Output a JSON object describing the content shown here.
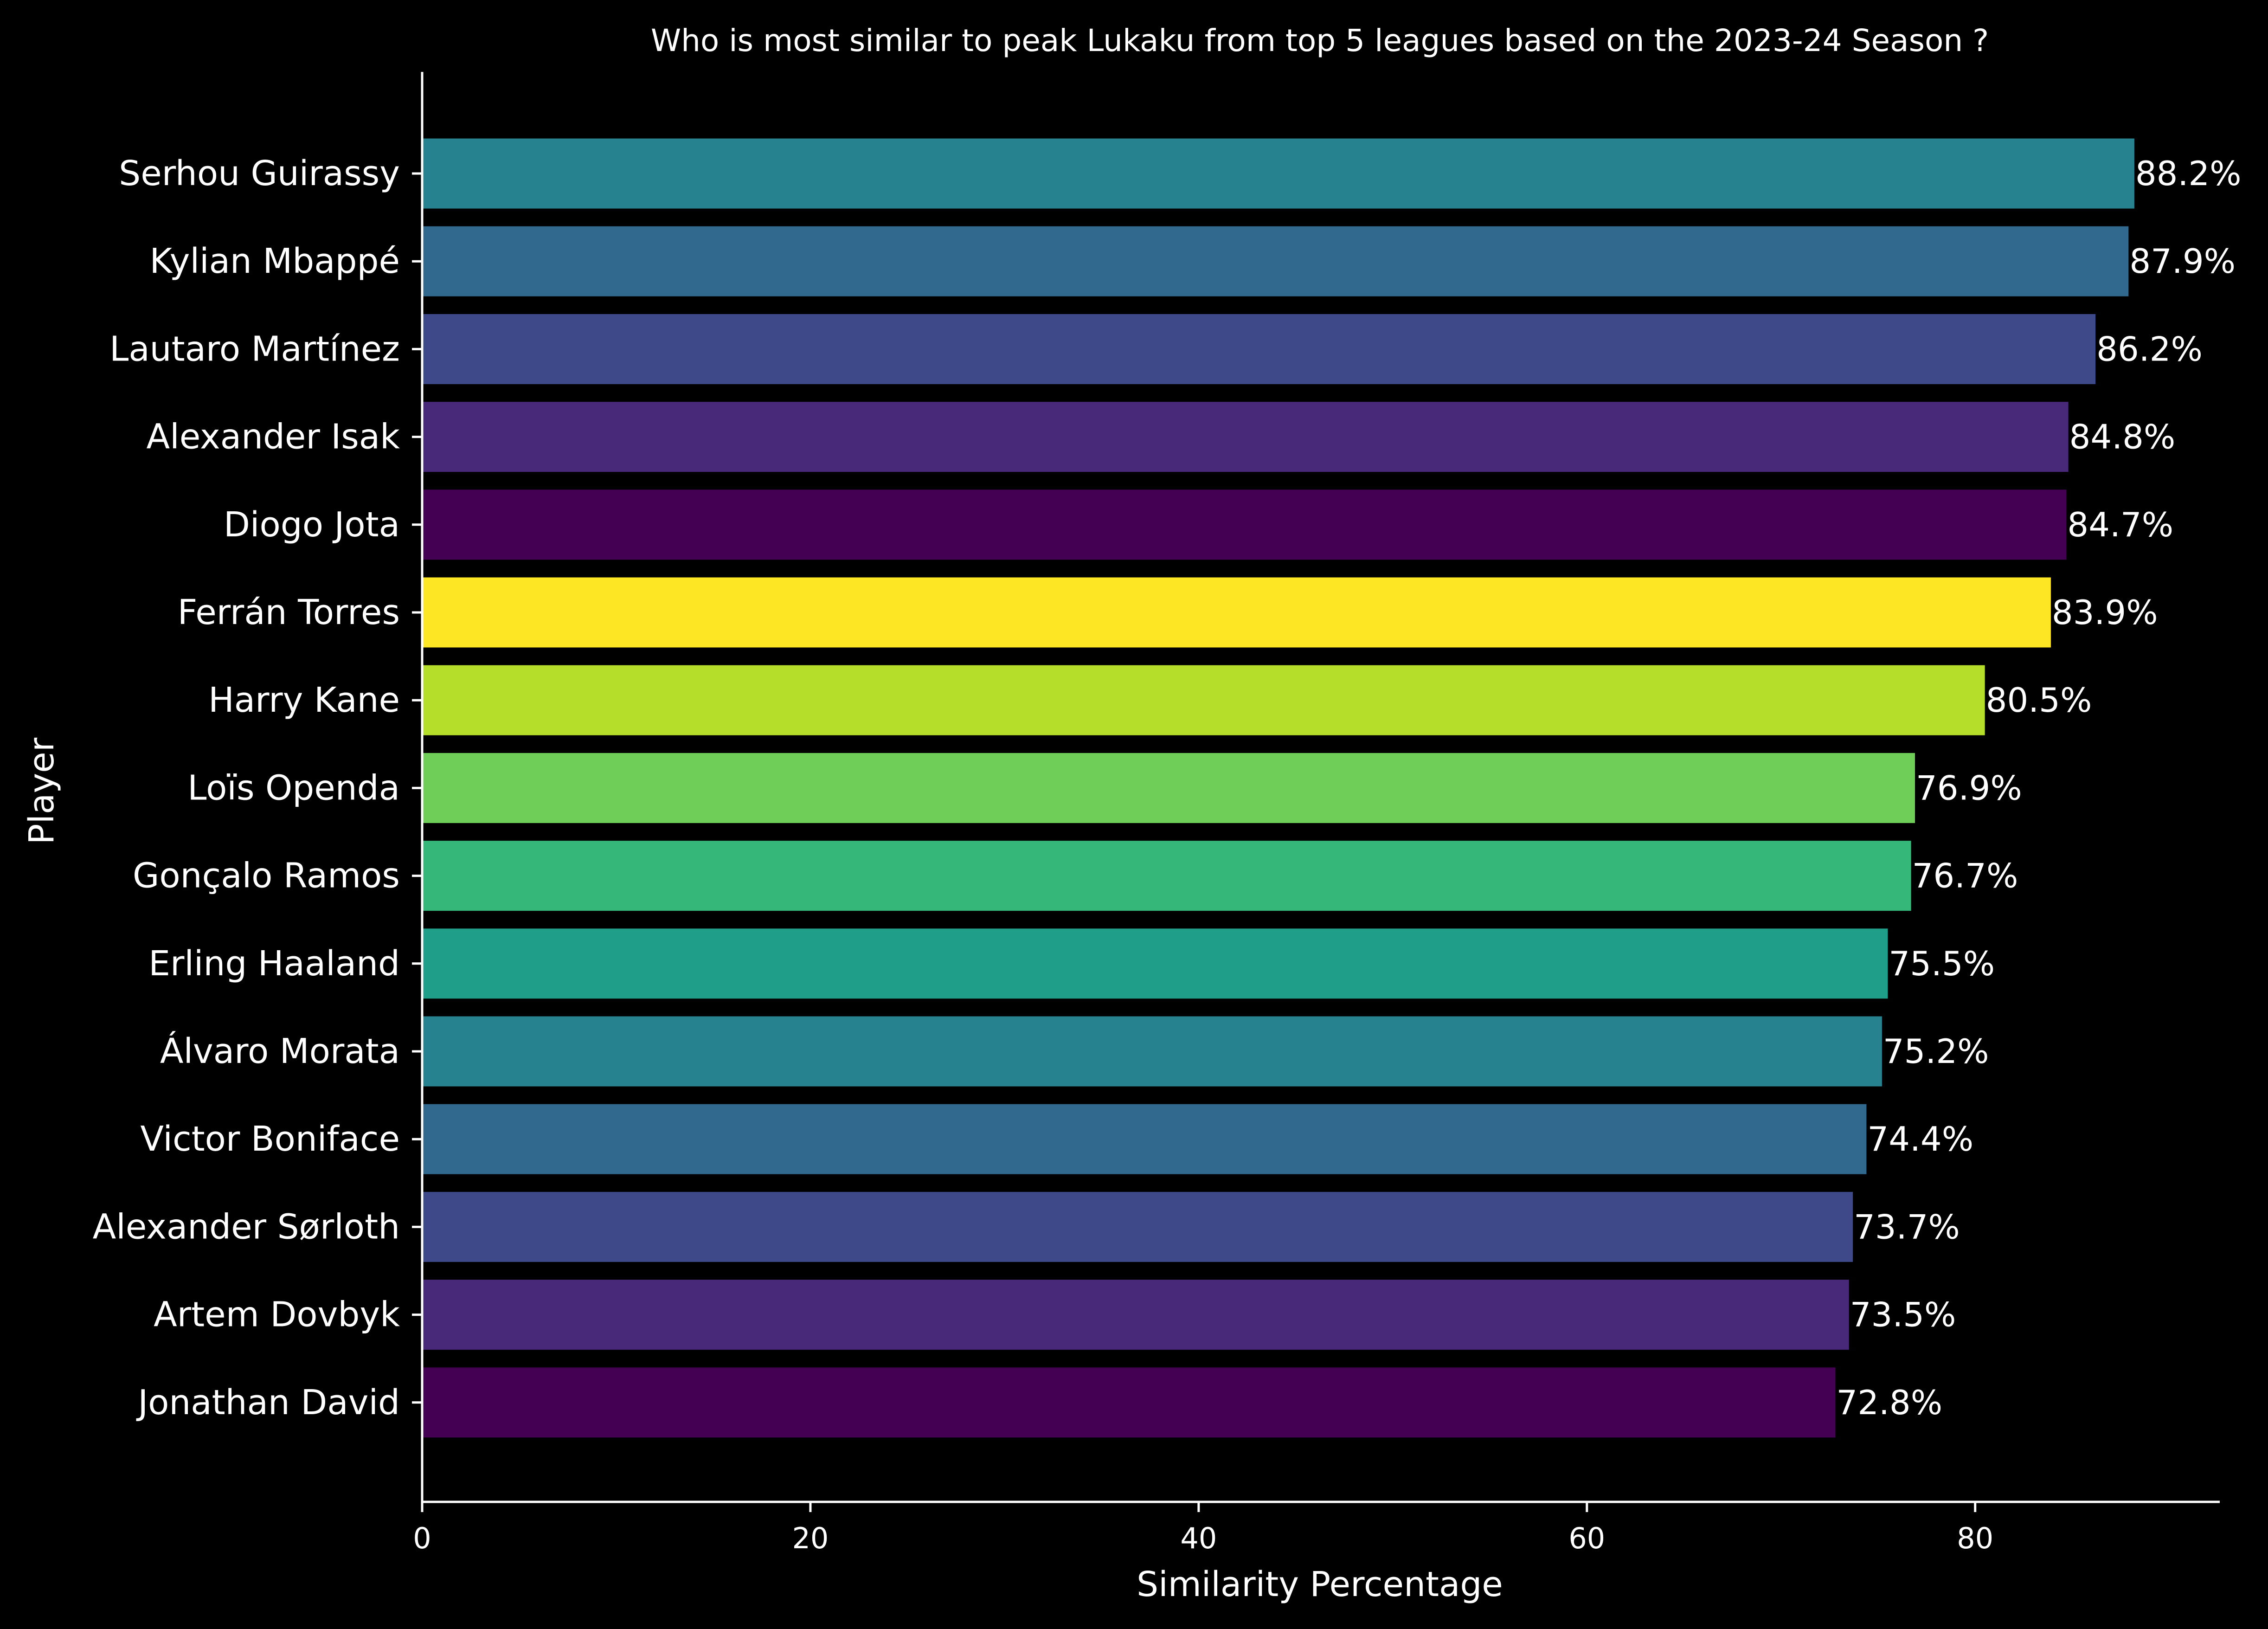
{
  "chart_data": {
    "type": "bar",
    "orientation": "horizontal",
    "title": "Who is most similar to peak Lukaku from top 5 leagues based on the 2023-24 Season ?",
    "xlabel": "Similarity Percentage",
    "ylabel": "Player",
    "xlim": [
      0,
      92.6
    ],
    "x_ticks": [
      0,
      20,
      40,
      60,
      80
    ],
    "grid": false,
    "value_suffix": "%",
    "categories": [
      "Serhou Guirassy",
      "Kylian Mbappé",
      "Lautaro Martínez",
      "Alexander Isak",
      "Diogo Jota",
      "Ferrán Torres",
      "Harry Kane",
      "Loïs Openda",
      "Gonçalo Ramos",
      "Erling Haaland",
      "Álvaro Morata",
      "Victor Boniface",
      "Alexander Sørloth",
      "Artem Dovbyk",
      "Jonathan David"
    ],
    "values": [
      88.2,
      87.9,
      86.2,
      84.8,
      84.7,
      83.9,
      80.5,
      76.9,
      76.7,
      75.5,
      75.2,
      74.4,
      73.7,
      73.5,
      72.8
    ],
    "colors": [
      "#26828e",
      "#31688e",
      "#3e4989",
      "#482878",
      "#440154",
      "#fde725",
      "#b5de2b",
      "#6ece58",
      "#35b779",
      "#1f9e89",
      "#26828e",
      "#31688e",
      "#3e4989",
      "#482878",
      "#440154"
    ],
    "background": "#000000",
    "text_color": "#ffffff"
  }
}
